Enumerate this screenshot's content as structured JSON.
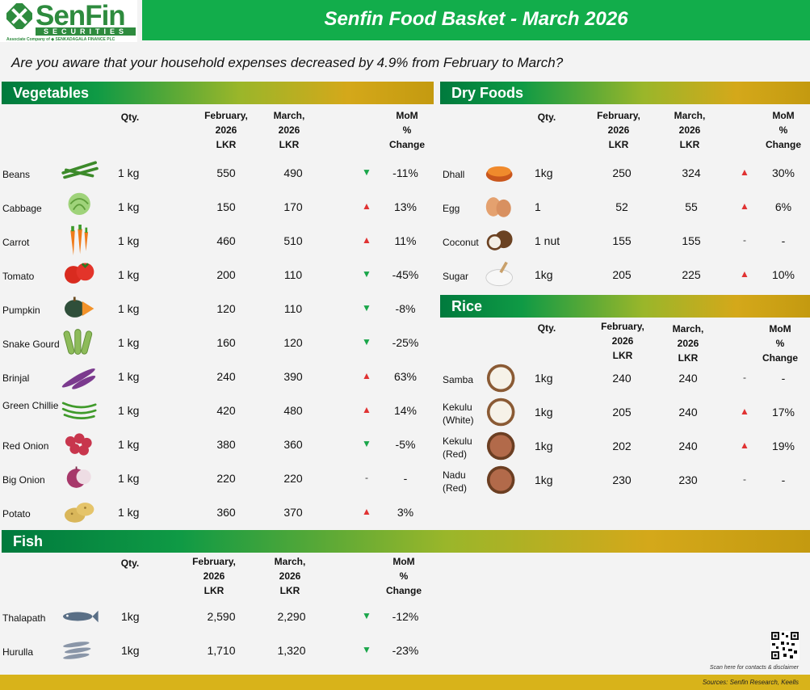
{
  "brand": {
    "name": "SenFin",
    "sub": "SECURITIES",
    "associate": "Associate Company of  ◆ SENKADAGALA FINANCE PLC"
  },
  "title": "Senfin Food Basket - March 2026",
  "subtitle": "Are you aware that your household expenses decreased by 4.9% from February to March?",
  "headers": {
    "qty": "Qty.",
    "feb": [
      "February,",
      "2026",
      "LKR"
    ],
    "mar": [
      "March,",
      "2026",
      "LKR"
    ],
    "mom": [
      "MoM",
      "%",
      "Change"
    ]
  },
  "vegetables": {
    "title": "Vegetables",
    "items": [
      {
        "name": "Beans",
        "qty": "1 kg",
        "feb": "550",
        "mar": "490",
        "dir": "down",
        "pct": "-11%"
      },
      {
        "name": "Cabbage",
        "qty": "1 kg",
        "feb": "150",
        "mar": "170",
        "dir": "up",
        "pct": "13%"
      },
      {
        "name": "Carrot",
        "qty": "1 kg",
        "feb": "460",
        "mar": "510",
        "dir": "up",
        "pct": "11%"
      },
      {
        "name": "Tomato",
        "qty": "1 kg",
        "feb": "200",
        "mar": "110",
        "dir": "down",
        "pct": "-45%"
      },
      {
        "name": "Pumpkin",
        "qty": "1 kg",
        "feb": "120",
        "mar": "110",
        "dir": "down",
        "pct": "-8%"
      },
      {
        "name": "Snake Gourd",
        "qty": "1 kg",
        "feb": "160",
        "mar": "120",
        "dir": "down",
        "pct": "-25%"
      },
      {
        "name": "Brinjal",
        "qty": "1 kg",
        "feb": "240",
        "mar": "390",
        "dir": "up",
        "pct": "63%"
      },
      {
        "name": "Green Chillie",
        "qty": "1 kg",
        "feb": "420",
        "mar": "480",
        "dir": "up",
        "pct": "14%"
      },
      {
        "name": "Red Onion",
        "qty": "1 kg",
        "feb": "380",
        "mar": "360",
        "dir": "down",
        "pct": "-5%"
      },
      {
        "name": "Big Onion",
        "qty": "1 kg",
        "feb": "220",
        "mar": "220",
        "dir": "flat",
        "pct": "-"
      },
      {
        "name": "Potato",
        "qty": "1 kg",
        "feb": "360",
        "mar": "370",
        "dir": "up",
        "pct": "3%"
      }
    ]
  },
  "dry_foods": {
    "title": "Dry Foods",
    "items": [
      {
        "name": "Dhall",
        "qty": "1kg",
        "feb": "250",
        "mar": "324",
        "dir": "up",
        "pct": "30%"
      },
      {
        "name": "Egg",
        "qty": "1",
        "feb": "52",
        "mar": "55",
        "dir": "up",
        "pct": "6%"
      },
      {
        "name": "Coconut",
        "qty": "1 nut",
        "feb": "155",
        "mar": "155",
        "dir": "flat",
        "pct": "-"
      },
      {
        "name": "Sugar",
        "qty": "1kg",
        "feb": "205",
        "mar": "225",
        "dir": "up",
        "pct": "10%"
      }
    ]
  },
  "rice": {
    "title": "Rice",
    "items": [
      {
        "name": "Samba",
        "qty": "1kg",
        "feb": "240",
        "mar": "240",
        "dir": "flat",
        "pct": "-"
      },
      {
        "name": "Kekulu (White)",
        "qty": "1kg",
        "feb": "205",
        "mar": "240",
        "dir": "up",
        "pct": "17%"
      },
      {
        "name": "Kekulu (Red)",
        "qty": "1kg",
        "feb": "202",
        "mar": "240",
        "dir": "up",
        "pct": "19%"
      },
      {
        "name": "Nadu (Red)",
        "qty": "1kg",
        "feb": "230",
        "mar": "230",
        "dir": "flat",
        "pct": "-"
      }
    ]
  },
  "fish": {
    "title": "Fish",
    "items": [
      {
        "name": "Thalapath",
        "qty": "1kg",
        "feb": "2,590",
        "mar": "2,290",
        "dir": "down",
        "pct": "-12%"
      },
      {
        "name": "Hurulla",
        "qty": "1kg",
        "feb": "1,710",
        "mar": "1,320",
        "dir": "down",
        "pct": "-23%"
      }
    ]
  },
  "footer": {
    "qr_note": "Scan here for contacts & disclaimer",
    "sources": "Sources: Senfin Research, Keells"
  },
  "arrows": {
    "up": "▲",
    "down": "▼",
    "flat": "-"
  },
  "colors": {
    "brand_green": "#12ad4b",
    "up": "#e03232",
    "down": "#1aa64a",
    "footer_gold": "#d8b31a"
  }
}
